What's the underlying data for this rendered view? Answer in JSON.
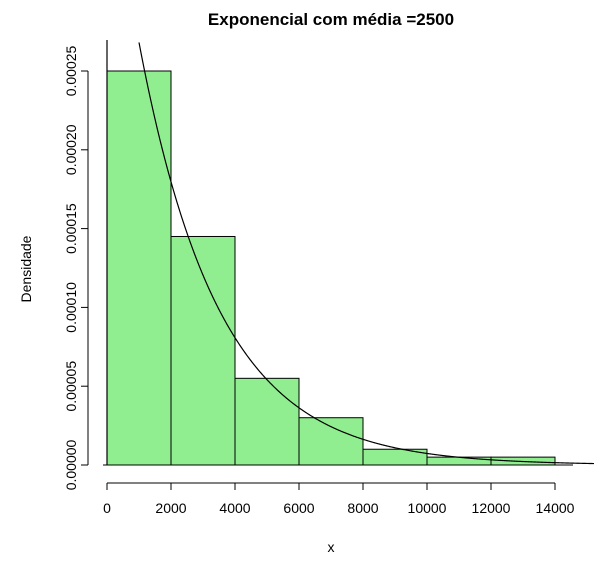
{
  "chart_data": {
    "type": "bar",
    "title": "Exponencial com média =2500",
    "xlabel": "x",
    "ylabel": "Densidade",
    "bin_edges": [
      0,
      2000,
      4000,
      6000,
      8000,
      10000,
      12000,
      14000
    ],
    "values": [
      0.00025,
      0.000145,
      5.5e-05,
      3e-05,
      1e-05,
      5e-06,
      5e-06
    ],
    "bar_fill": "#90EE90",
    "xlim": [
      0,
      14000
    ],
    "ylim": [
      0,
      0.00025
    ],
    "x_ticks": [
      0,
      2000,
      4000,
      6000,
      8000,
      10000,
      12000,
      14000
    ],
    "x_tick_labels": [
      "0",
      "2000",
      "4000",
      "6000",
      "8000",
      "10000",
      "12000",
      "14000"
    ],
    "y_ticks": [
      0,
      5e-05,
      0.0001,
      0.00015,
      0.0002,
      0.00025
    ],
    "y_tick_labels": [
      "0.00000",
      "0.00005",
      "0.00010",
      "0.00015",
      "0.00020",
      "0.00025"
    ],
    "curve": {
      "type": "exponential-density",
      "mean": 2500
    },
    "grid": false,
    "legend": "none"
  }
}
